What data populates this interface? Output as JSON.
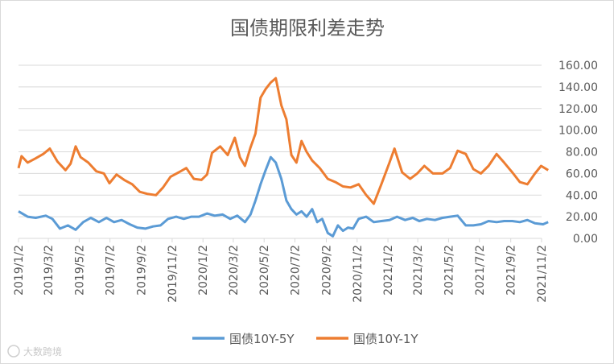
{
  "chart_data": {
    "type": "line",
    "title": "国债期限利差走势",
    "xlabel": "",
    "ylabel": "",
    "ylim": [
      0,
      160
    ],
    "y_ticks": [
      "0.00",
      "20.00",
      "40.00",
      "60.00",
      "80.00",
      "100.00",
      "120.00",
      "140.00",
      "160.00"
    ],
    "x_ticks": [
      "2019/1/2",
      "2019/3/2",
      "2019/5/2",
      "2019/7/2",
      "2019/9/2",
      "2019/11/2",
      "2020/1/2",
      "2020/3/2",
      "2020/5/2",
      "2020/7/2",
      "2020/9/2",
      "2020/11/2",
      "2021/1/2",
      "2021/3/2",
      "2021/5/2",
      "2021/7/2",
      "2021/9/2",
      "2021/11/2"
    ],
    "grid": "horizontal",
    "legend_position": "bottom",
    "series": [
      {
        "name": "国债10Y-5Y",
        "color": "#5b9bd5",
        "points": [
          [
            "2019/1/2",
            25
          ],
          [
            "2019/1/20",
            20
          ],
          [
            "2019/2/5",
            19
          ],
          [
            "2019/2/25",
            21
          ],
          [
            "2019/3/10",
            18
          ],
          [
            "2019/3/25",
            9
          ],
          [
            "2019/4/10",
            12
          ],
          [
            "2019/4/25",
            8
          ],
          [
            "2019/5/10",
            15
          ],
          [
            "2019/5/25",
            19
          ],
          [
            "2019/6/10",
            15
          ],
          [
            "2019/6/25",
            19
          ],
          [
            "2019/7/10",
            15
          ],
          [
            "2019/7/25",
            17
          ],
          [
            "2019/8/10",
            13
          ],
          [
            "2019/8/25",
            10
          ],
          [
            "2019/9/10",
            9
          ],
          [
            "2019/9/25",
            11
          ],
          [
            "2019/10/10",
            12
          ],
          [
            "2019/10/25",
            18
          ],
          [
            "2019/11/10",
            20
          ],
          [
            "2019/11/25",
            18
          ],
          [
            "2019/12/10",
            20
          ],
          [
            "2019/12/25",
            20
          ],
          [
            "2020/1/10",
            23
          ],
          [
            "2020/1/25",
            21
          ],
          [
            "2020/2/10",
            22
          ],
          [
            "2020/2/25",
            18
          ],
          [
            "2020/3/10",
            21
          ],
          [
            "2020/3/25",
            15
          ],
          [
            "2020/4/5",
            22
          ],
          [
            "2020/4/15",
            35
          ],
          [
            "2020/4/25",
            50
          ],
          [
            "2020/5/5",
            63
          ],
          [
            "2020/5/15",
            75
          ],
          [
            "2020/5/25",
            70
          ],
          [
            "2020/6/5",
            55
          ],
          [
            "2020/6/15",
            35
          ],
          [
            "2020/6/25",
            27
          ],
          [
            "2020/7/5",
            22
          ],
          [
            "2020/7/15",
            25
          ],
          [
            "2020/7/25",
            20
          ],
          [
            "2020/8/5",
            27
          ],
          [
            "2020/8/15",
            15
          ],
          [
            "2020/8/25",
            18
          ],
          [
            "2020/9/5",
            5
          ],
          [
            "2020/9/15",
            2
          ],
          [
            "2020/9/25",
            12
          ],
          [
            "2020/10/5",
            7
          ],
          [
            "2020/10/15",
            10
          ],
          [
            "2020/10/25",
            9
          ],
          [
            "2020/11/5",
            18
          ],
          [
            "2020/11/20",
            20
          ],
          [
            "2020/12/5",
            15
          ],
          [
            "2020/12/20",
            16
          ],
          [
            "2021/1/5",
            17
          ],
          [
            "2021/1/20",
            20
          ],
          [
            "2021/2/5",
            17
          ],
          [
            "2021/2/20",
            19
          ],
          [
            "2021/3/5",
            16
          ],
          [
            "2021/3/20",
            18
          ],
          [
            "2021/4/5",
            17
          ],
          [
            "2021/4/20",
            19
          ],
          [
            "2021/5/5",
            20
          ],
          [
            "2021/5/20",
            21
          ],
          [
            "2021/6/5",
            12
          ],
          [
            "2021/6/20",
            12
          ],
          [
            "2021/7/5",
            13
          ],
          [
            "2021/7/20",
            16
          ],
          [
            "2021/8/5",
            15
          ],
          [
            "2021/8/20",
            16
          ],
          [
            "2021/9/5",
            16
          ],
          [
            "2021/9/20",
            15
          ],
          [
            "2021/10/5",
            17
          ],
          [
            "2021/10/20",
            14
          ],
          [
            "2021/11/5",
            13
          ],
          [
            "2021/11/15",
            15
          ]
        ]
      },
      {
        "name": "国债10Y-1Y",
        "color": "#ed7d31",
        "points": [
          [
            "2019/1/2",
            65
          ],
          [
            "2019/1/8",
            76
          ],
          [
            "2019/1/20",
            70
          ],
          [
            "2019/2/5",
            74
          ],
          [
            "2019/2/20",
            78
          ],
          [
            "2019/3/5",
            83
          ],
          [
            "2019/3/20",
            71
          ],
          [
            "2019/4/5",
            63
          ],
          [
            "2019/4/15",
            69
          ],
          [
            "2019/4/25",
            85
          ],
          [
            "2019/5/5",
            75
          ],
          [
            "2019/5/20",
            70
          ],
          [
            "2019/6/5",
            62
          ],
          [
            "2019/6/20",
            60
          ],
          [
            "2019/7/1",
            51
          ],
          [
            "2019/7/15",
            59
          ],
          [
            "2019/7/30",
            54
          ],
          [
            "2019/8/15",
            50
          ],
          [
            "2019/8/30",
            43
          ],
          [
            "2019/9/15",
            41
          ],
          [
            "2019/10/1",
            40
          ],
          [
            "2019/10/15",
            47
          ],
          [
            "2019/10/30",
            57
          ],
          [
            "2019/11/15",
            61
          ],
          [
            "2019/11/30",
            65
          ],
          [
            "2019/12/15",
            55
          ],
          [
            "2019/12/30",
            54
          ],
          [
            "2020/1/10",
            59
          ],
          [
            "2020/1/20",
            79
          ],
          [
            "2020/2/5",
            85
          ],
          [
            "2020/2/20",
            77
          ],
          [
            "2020/3/5",
            93
          ],
          [
            "2020/3/15",
            75
          ],
          [
            "2020/3/25",
            67
          ],
          [
            "2020/4/5",
            84
          ],
          [
            "2020/4/15",
            97
          ],
          [
            "2020/4/25",
            130
          ],
          [
            "2020/5/5",
            138
          ],
          [
            "2020/5/15",
            144
          ],
          [
            "2020/5/25",
            148
          ],
          [
            "2020/6/5",
            123
          ],
          [
            "2020/6/15",
            110
          ],
          [
            "2020/6/25",
            77
          ],
          [
            "2020/7/5",
            70
          ],
          [
            "2020/7/15",
            90
          ],
          [
            "2020/7/25",
            80
          ],
          [
            "2020/8/5",
            72
          ],
          [
            "2020/8/20",
            65
          ],
          [
            "2020/9/5",
            55
          ],
          [
            "2020/9/20",
            52
          ],
          [
            "2020/10/5",
            48
          ],
          [
            "2020/10/20",
            47
          ],
          [
            "2020/11/5",
            50
          ],
          [
            "2020/11/20",
            40
          ],
          [
            "2020/12/5",
            32
          ],
          [
            "2020/12/20",
            50
          ],
          [
            "2021/1/5",
            70
          ],
          [
            "2021/1/15",
            83
          ],
          [
            "2021/1/30",
            61
          ],
          [
            "2021/2/15",
            55
          ],
          [
            "2021/3/1",
            60
          ],
          [
            "2021/3/15",
            67
          ],
          [
            "2021/4/1",
            60
          ],
          [
            "2021/4/20",
            60
          ],
          [
            "2021/5/5",
            65
          ],
          [
            "2021/5/20",
            81
          ],
          [
            "2021/6/5",
            78
          ],
          [
            "2021/6/20",
            64
          ],
          [
            "2021/7/5",
            60
          ],
          [
            "2021/7/20",
            67
          ],
          [
            "2021/8/5",
            78
          ],
          [
            "2021/8/20",
            70
          ],
          [
            "2021/9/5",
            61
          ],
          [
            "2021/9/20",
            52
          ],
          [
            "2021/10/5",
            50
          ],
          [
            "2021/10/20",
            60
          ],
          [
            "2021/11/1",
            67
          ],
          [
            "2021/11/15",
            63
          ]
        ]
      }
    ]
  },
  "watermark": "大数跨境"
}
